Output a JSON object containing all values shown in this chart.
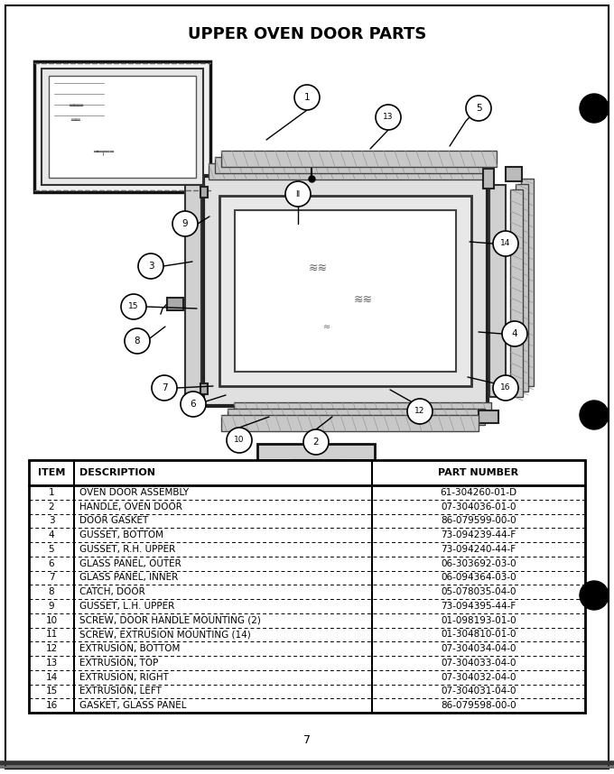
{
  "title": "UPPER OVEN DOOR PARTS",
  "page_number": "7",
  "bg_color": "#ffffff",
  "table_headers": [
    "ITEM",
    "DESCRIPTION",
    "PART NUMBER"
  ],
  "table_rows": [
    [
      "1",
      "OVEN DOOR ASSEMBLY",
      "61-304260-01-D"
    ],
    [
      "2",
      "HANDLE, OVEN DOOR",
      "07-304036-01-0"
    ],
    [
      "3",
      "DOOR GASKET",
      "86-079599-00-0"
    ],
    [
      "4",
      "GUSSET, BOTTOM",
      "73-094239-44-F"
    ],
    [
      "5",
      "GUSSET, R.H. UPPER",
      "73-094240-44-F"
    ],
    [
      "6",
      "GLASS PANEL, OUTER",
      "06-303692-03-0"
    ],
    [
      "7",
      "GLASS PANEL, INNER",
      "06-094364-03-0"
    ],
    [
      "8",
      "CATCH, DOOR",
      "05-078035-04-0"
    ],
    [
      "9",
      "GUSSET, L.H. UPPER",
      "73-094395-44-F"
    ],
    [
      "10",
      "SCREW, DOOR HANDLE MOUNTING (2)",
      "01-098193-01-0"
    ],
    [
      "11",
      "SCREW, EXTRUSION MOUNTING (14)",
      "01-304810-01-0"
    ],
    [
      "12",
      "EXTRUSION, BOTTOM",
      "07-304034-04-0"
    ],
    [
      "13",
      "EXTRUSION, TOP",
      "07-304033-04-0"
    ],
    [
      "14",
      "EXTRUSION, RIGHT",
      "07-304032-04-0"
    ],
    [
      "15",
      "EXTRUSION, LEFT",
      "07-304031-04-0"
    ],
    [
      "16",
      "GASKET, GLASS PANEL",
      "86-079598-00-0"
    ]
  ]
}
